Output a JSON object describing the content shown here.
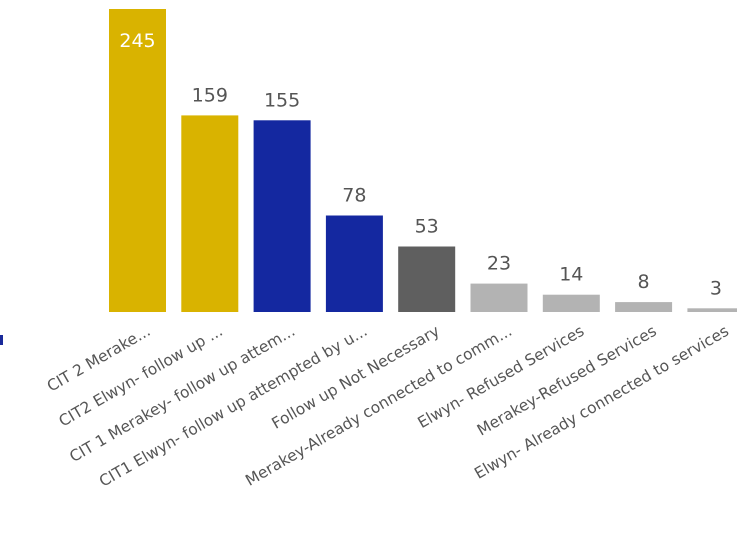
{
  "chart_data": {
    "type": "bar",
    "categories": [
      "CIT 2 Merake...",
      "CIT2 Elwyn- follow up ...",
      "CIT 1 Merakey- follow up attem...",
      "CIT1 Elwyn- follow up attempted by u...",
      "Follow up Not Necessary",
      "Merakey-Already connected to comm...",
      "Elwyn- Refused Services",
      "Merakey-Refused Services",
      "Elwyn- Already connected to services"
    ],
    "values": [
      245,
      159,
      155,
      78,
      53,
      23,
      14,
      8,
      3
    ],
    "value_labels": [
      "245",
      "159",
      "155",
      "78",
      "53",
      "23",
      "14",
      "8",
      "3"
    ],
    "colors": [
      "#d9b300",
      "#d9b300",
      "#1428a0",
      "#1428a0",
      "#5f5f5f",
      "#b3b3b3",
      "#b3b3b3",
      "#b3b3b3",
      "#b3b3b3"
    ],
    "title": "",
    "xlabel": "",
    "ylabel": "",
    "ylim": [
      0,
      245
    ],
    "grid": false,
    "legend": "none"
  }
}
